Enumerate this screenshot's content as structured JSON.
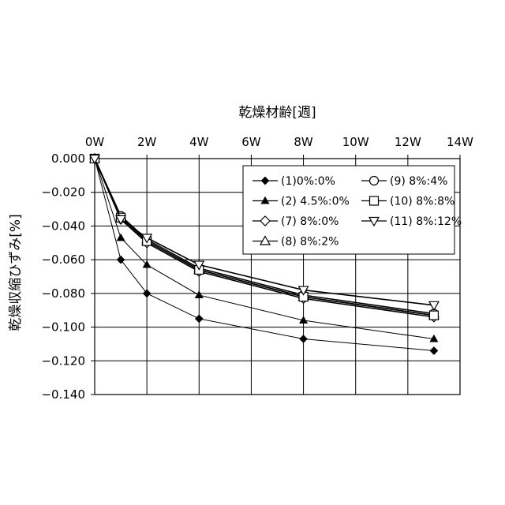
{
  "chart_data": {
    "type": "line",
    "title": "",
    "xlabel": "乾燥材齢[週]",
    "ylabel": "乾燥収縮ひずみ[%]",
    "x_axis_position": "top",
    "xlim": [
      0,
      14
    ],
    "ylim": [
      -0.14,
      0.0
    ],
    "x_ticks": [
      0,
      2,
      4,
      6,
      8,
      10,
      12,
      14
    ],
    "x_tick_labels": [
      "0W",
      "2W",
      "4W",
      "6W",
      "8W",
      "10W",
      "12W",
      "14W"
    ],
    "y_ticks": [
      0.0,
      -0.02,
      -0.04,
      -0.06,
      -0.08,
      -0.1,
      -0.12,
      -0.14
    ],
    "y_tick_labels": [
      "0.000",
      "−0.020",
      "−0.040",
      "−0.060",
      "−0.080",
      "−0.100",
      "−0.120",
      "−0.140"
    ],
    "grid": true,
    "legend_position": "top-right",
    "series": [
      {
        "name": "(1)0%:0%",
        "marker": "diamond-filled",
        "x": [
          0,
          1,
          2,
          4,
          8,
          13
        ],
        "values": [
          0.0,
          -0.06,
          -0.08,
          -0.095,
          -0.107,
          -0.114
        ]
      },
      {
        "name": "(2) 4.5%:0%",
        "marker": "triangle-filled",
        "x": [
          0,
          1,
          2,
          4,
          8,
          13
        ],
        "values": [
          0.0,
          -0.047,
          -0.063,
          -0.081,
          -0.096,
          -0.107
        ]
      },
      {
        "name": "(7) 8%:0%",
        "marker": "diamond-open",
        "x": [
          0,
          1,
          2,
          4,
          8,
          13
        ],
        "values": [
          0.0,
          -0.036,
          -0.05,
          -0.067,
          -0.083,
          -0.094
        ]
      },
      {
        "name": "(8) 8%:2%",
        "marker": "triangle-open",
        "x": [
          0,
          1,
          2,
          4,
          8,
          13
        ],
        "values": [
          0.0,
          -0.035,
          -0.049,
          -0.066,
          -0.082,
          -0.093
        ]
      },
      {
        "name": "(9) 8%:4%",
        "marker": "circle-open",
        "x": [
          0,
          1,
          2,
          4,
          8,
          13
        ],
        "values": [
          0.0,
          -0.034,
          -0.048,
          -0.065,
          -0.081,
          -0.092
        ]
      },
      {
        "name": "(10) 8%:8%",
        "marker": "square-open",
        "x": [
          0,
          1,
          2,
          4,
          8,
          13
        ],
        "values": [
          0.0,
          -0.035,
          -0.049,
          -0.066,
          -0.082,
          -0.093
        ]
      },
      {
        "name": "(11) 8%:12%",
        "marker": "triangle-down-open",
        "x": [
          0,
          1,
          2,
          4,
          8,
          13
        ],
        "values": [
          0.0,
          -0.036,
          -0.047,
          -0.063,
          -0.078,
          -0.087
        ]
      }
    ]
  }
}
